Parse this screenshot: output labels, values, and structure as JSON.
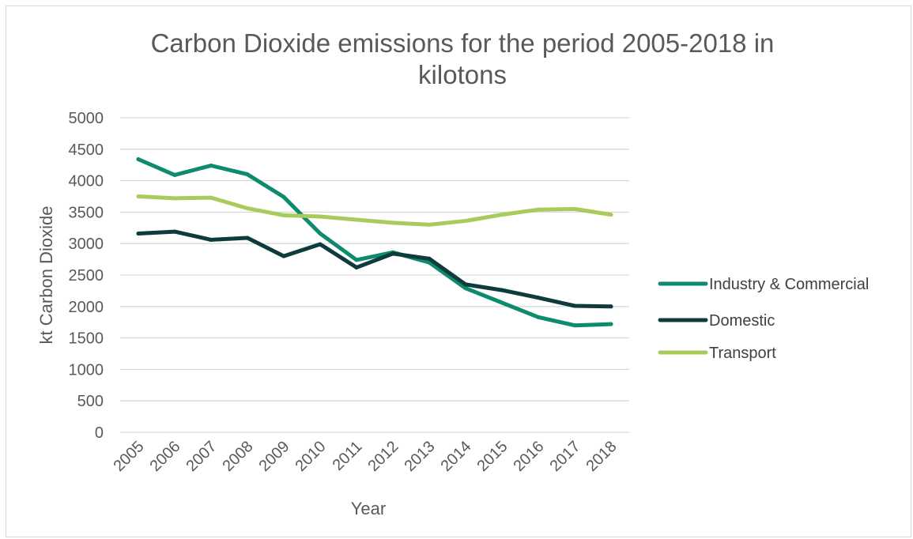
{
  "chart_data": {
    "type": "line",
    "title_lines": [
      "Carbon Dioxide emissions for the period 2005-2018 in",
      "kilotons"
    ],
    "xlabel": "Year",
    "ylabel": "kt Carbon Dioxide",
    "ylim": [
      0,
      5000
    ],
    "yticks": [
      "0",
      "500",
      "1000",
      "1500",
      "2000",
      "2500",
      "3000",
      "3500",
      "4000",
      "4500",
      "5000"
    ],
    "categories": [
      "2005",
      "2006",
      "2007",
      "2008",
      "2009",
      "2010",
      "2011",
      "2012",
      "2013",
      "2014",
      "2015",
      "2016",
      "2017",
      "2018"
    ],
    "grid": true,
    "legend_position": "right",
    "series": [
      {
        "name": "Industry & Commercial",
        "color": "#0e8a6c",
        "values": [
          4340,
          4090,
          4240,
          4100,
          3740,
          3160,
          2740,
          2860,
          2700,
          2290,
          2060,
          1830,
          1700,
          1720
        ]
      },
      {
        "name": "Domestic",
        "color": "#0d3b3e",
        "values": [
          3160,
          3190,
          3060,
          3090,
          2800,
          2990,
          2620,
          2840,
          2760,
          2350,
          2260,
          2140,
          2010,
          2000
        ]
      },
      {
        "name": "Transport",
        "color": "#a7cc5c",
        "values": [
          3750,
          3720,
          3730,
          3560,
          3450,
          3430,
          3380,
          3330,
          3300,
          3360,
          3460,
          3540,
          3550,
          3460
        ]
      }
    ]
  }
}
